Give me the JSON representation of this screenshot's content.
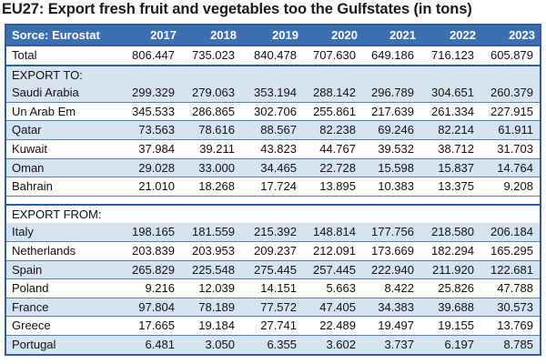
{
  "chart_data": {
    "type": "table",
    "title": "EU27: Export fresh fruit and vegetables too the Gulfstates (in tons)",
    "source_label": "Sorce: Eurostat",
    "years": [
      "2017",
      "2018",
      "2019",
      "2020",
      "2021",
      "2022",
      "2023"
    ],
    "total": {
      "label": "Total",
      "values": [
        "806.447",
        "735.023",
        "840.478",
        "707.630",
        "649.186",
        "716.123",
        "605.879"
      ]
    },
    "export_to_label": "EXPORT TO:",
    "export_to": [
      {
        "label": "Saudi Arabia",
        "values": [
          "299.329",
          "279.063",
          "353.194",
          "288.142",
          "296.789",
          "304.651",
          "260.379"
        ]
      },
      {
        "label": "Un Arab Em",
        "values": [
          "345.533",
          "286.865",
          "302.706",
          "255.861",
          "217.639",
          "261.334",
          "227.915"
        ]
      },
      {
        "label": "Qatar",
        "values": [
          "73.563",
          "78.616",
          "88.567",
          "82.238",
          "69.246",
          "82.214",
          "61.911"
        ]
      },
      {
        "label": "Kuwait",
        "values": [
          "37.984",
          "39.211",
          "43.823",
          "44.767",
          "39.532",
          "38.712",
          "31.703"
        ]
      },
      {
        "label": "Oman",
        "values": [
          "29.028",
          "33.000",
          "34.465",
          "22.728",
          "15.598",
          "15.837",
          "14.764"
        ]
      },
      {
        "label": "Bahrain",
        "values": [
          "21.010",
          "18.268",
          "17.724",
          "13.895",
          "10.383",
          "13.375",
          "9.208"
        ]
      }
    ],
    "export_from_label": "EXPORT FROM:",
    "export_from": [
      {
        "label": "Italy",
        "values": [
          "198.165",
          "181.559",
          "215.392",
          "148.814",
          "177.756",
          "218.580",
          "206.184"
        ]
      },
      {
        "label": "Netherlands",
        "values": [
          "203.839",
          "203.953",
          "209.237",
          "212.091",
          "173.669",
          "182.294",
          "165.295"
        ]
      },
      {
        "label": "Spain",
        "values": [
          "265.829",
          "225.548",
          "275.445",
          "257.445",
          "222.940",
          "211.920",
          "122.681"
        ]
      },
      {
        "label": "Poland",
        "values": [
          "9.216",
          "12.039",
          "14.151",
          "5.663",
          "8.422",
          "25.826",
          "47.788"
        ]
      },
      {
        "label": "France",
        "values": [
          "97.804",
          "78.189",
          "77.572",
          "47.405",
          "34.383",
          "39.688",
          "30.573"
        ]
      },
      {
        "label": "Greece",
        "values": [
          "17.665",
          "19.184",
          "27.741",
          "22.489",
          "19.497",
          "19.155",
          "13.769"
        ]
      },
      {
        "label": "Portugal",
        "values": [
          "6.481",
          "3.050",
          "6.355",
          "3.602",
          "3.737",
          "6.197",
          "8.785"
        ]
      }
    ]
  }
}
